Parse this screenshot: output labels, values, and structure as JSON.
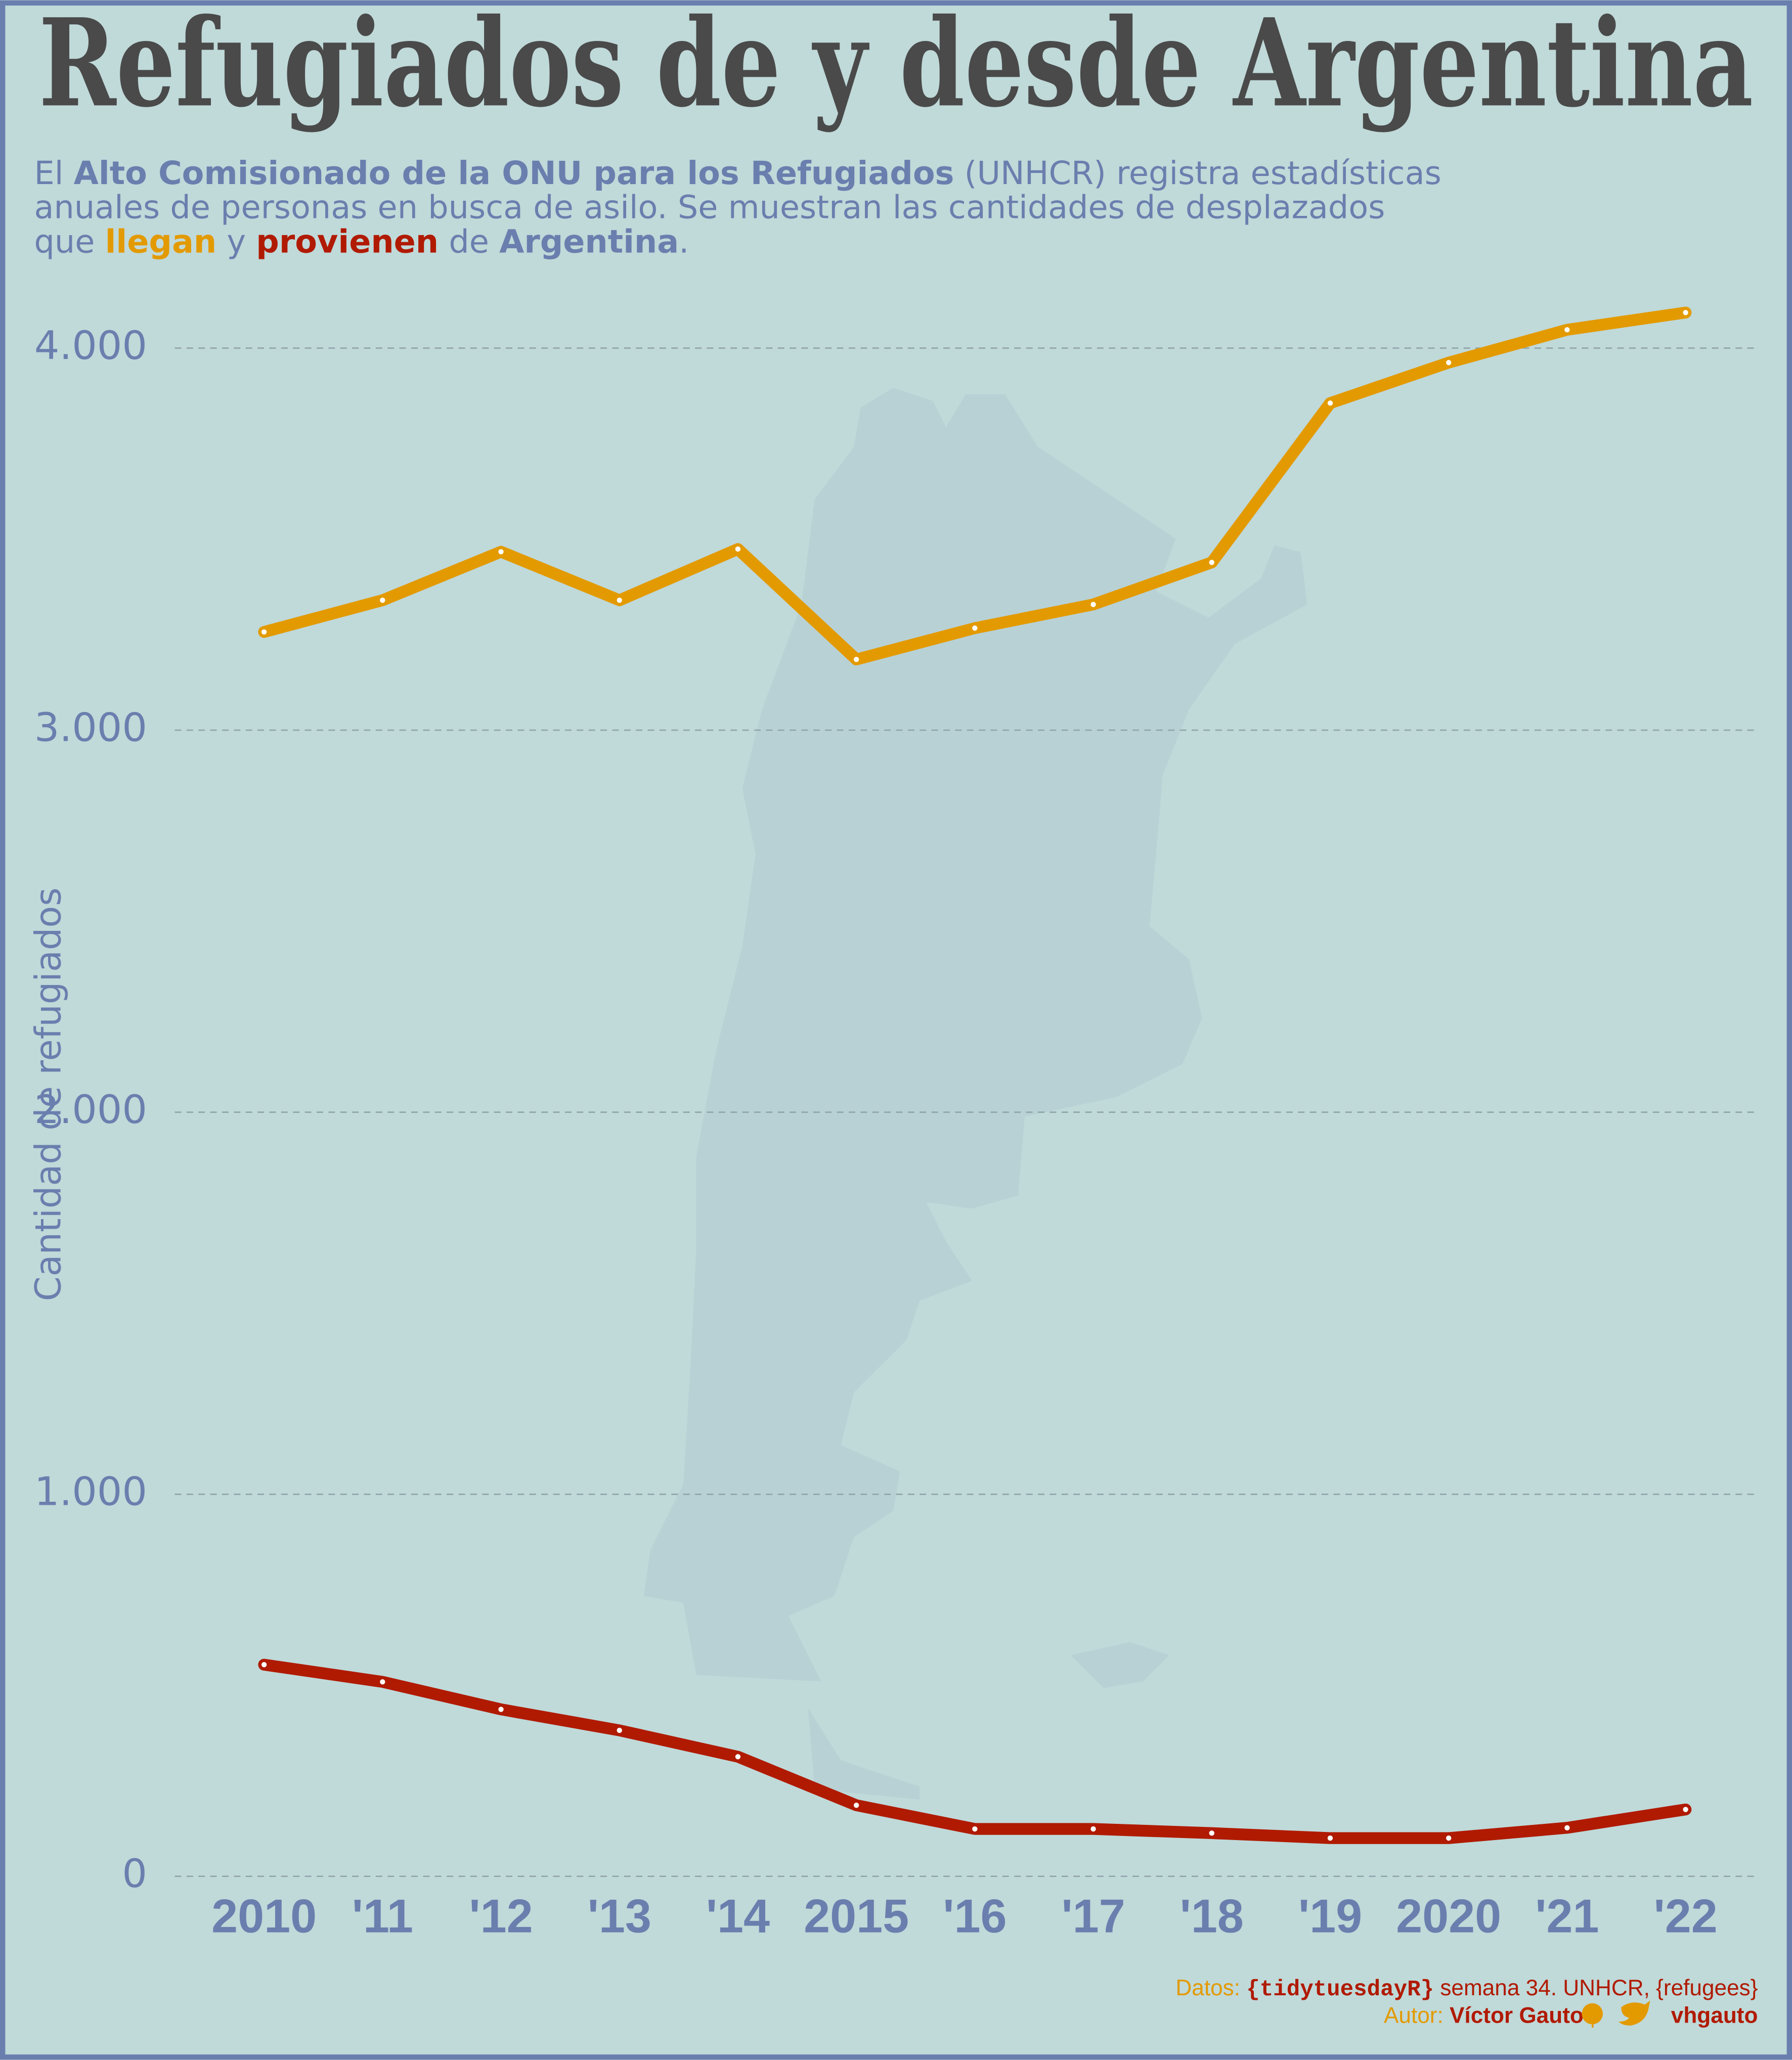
{
  "chart_data": {
    "type": "line",
    "title": "Refugiados de y desde Argentina",
    "subtitle": [
      [
        "El ",
        "Alto Comisionado de la ONU para los Refugiados",
        " (UNHCR) registra estadísticas"
      ],
      [
        "anuales de personas en busca de asilo. Se muestran las cantidades de desplazados"
      ],
      [
        "que ",
        "llegan",
        " y ",
        "provienen",
        " de ",
        "Argentina",
        "."
      ]
    ],
    "y_label": "Cantidad de refugiados",
    "categories": [
      "2010",
      "'11",
      "'12",
      "'13",
      "'14",
      "2015",
      "'16",
      "'17",
      "'18",
      "'19",
      "2020",
      "'21",
      "'22"
    ],
    "series": [
      {
        "color": "#e39a00",
        "values": [
          3257,
          3340,
          3467,
          3340,
          3474,
          3185,
          3267,
          3329,
          3439,
          3856,
          3962,
          4048,
          4093
        ]
      },
      {
        "color": "#b01a00",
        "values": [
          554,
          509,
          437,
          382,
          313,
          186,
          124,
          124,
          113,
          100,
          100,
          127,
          175
        ]
      }
    ],
    "ylim": [
      -40,
      4130
    ],
    "yticks": [
      0,
      {
        "value": 1000,
        "label": "1.000"
      },
      {
        "value": 2000,
        "label": "2.000"
      },
      {
        "value": 3000,
        "label": "3.000"
      },
      {
        "value": 4000,
        "label": "4.000"
      }
    ],
    "grid": true,
    "caption": [
      [
        "Datos: ",
        "{tidytuesdayR}",
        " semana 34. UNHCR, {refugees}"
      ],
      [
        "Autor: ",
        "Víctor Gauto",
        " | ",
        " vhgauto"
      ]
    ]
  }
}
